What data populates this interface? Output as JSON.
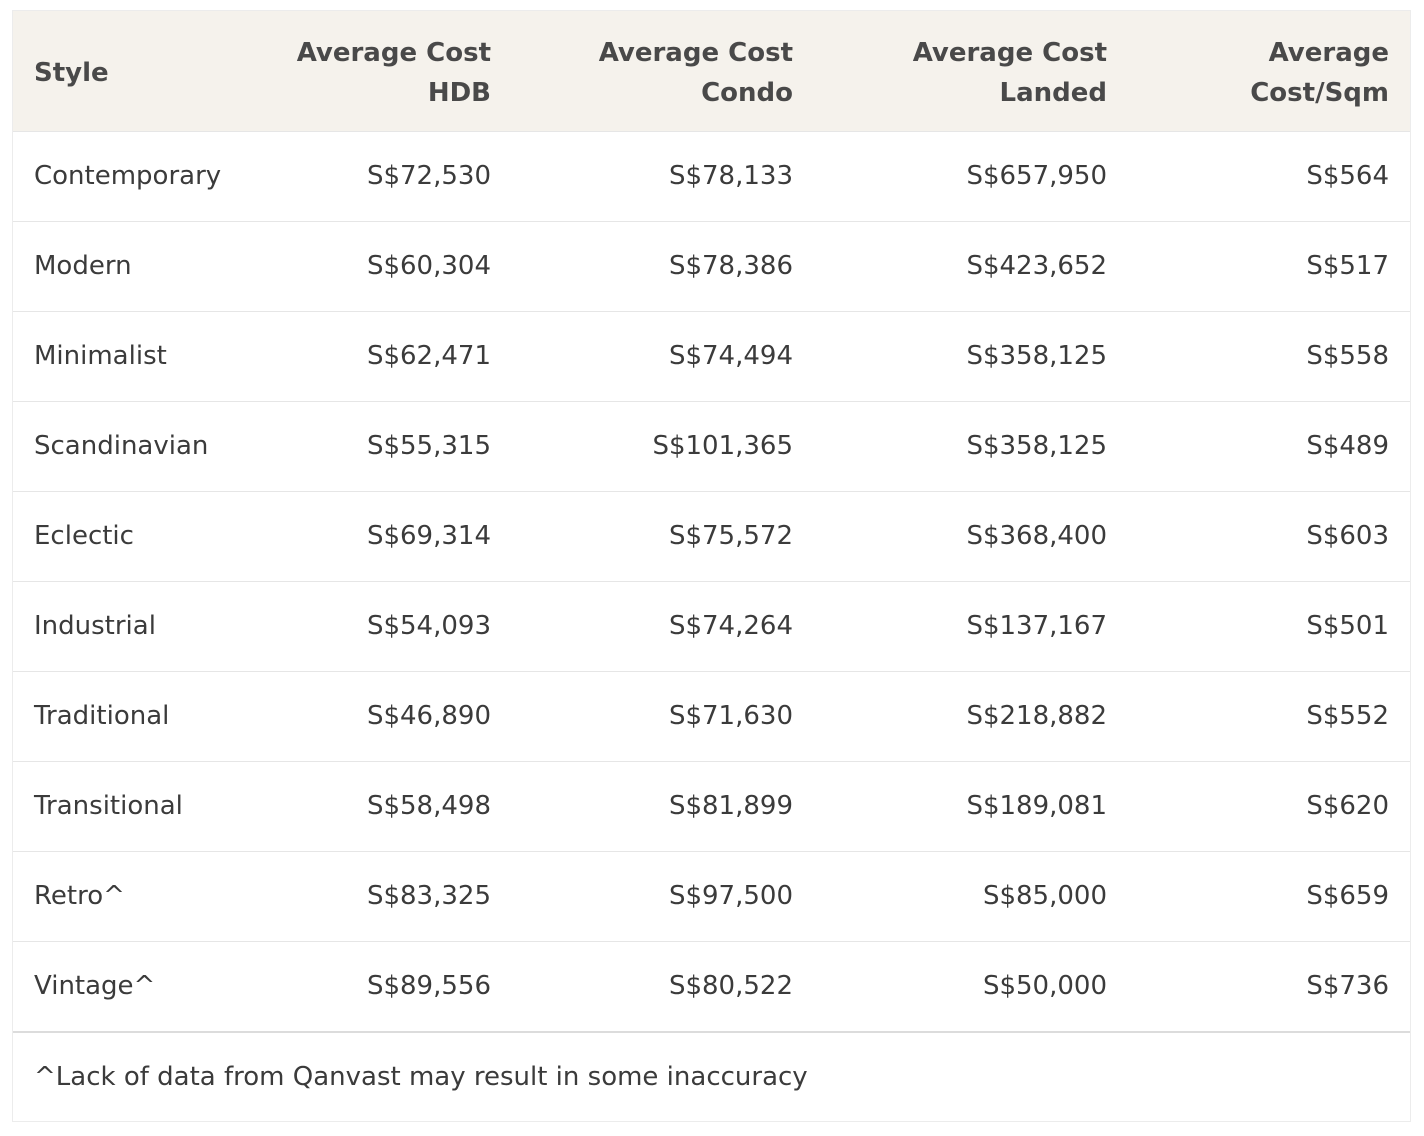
{
  "header": {
    "style": "Style",
    "hdb_line1": "Average Cost",
    "hdb_line2": "HDB",
    "condo_line1": "Average Cost",
    "condo_line2": "Condo",
    "landed_line1": "Average Cost",
    "landed_line2": "Landed",
    "sqm_line1": "Average",
    "sqm_line2": "Cost/Sqm"
  },
  "rows": [
    {
      "style": "Contemporary",
      "hdb": "S$72,530",
      "condo": "S$78,133",
      "landed": "S$657,950",
      "sqm": "S$564"
    },
    {
      "style": "Modern",
      "hdb": "S$60,304",
      "condo": "S$78,386",
      "landed": "S$423,652",
      "sqm": "S$517"
    },
    {
      "style": "Minimalist",
      "hdb": "S$62,471",
      "condo": "S$74,494",
      "landed": "S$358,125",
      "sqm": "S$558"
    },
    {
      "style": "Scandinavian",
      "hdb": "S$55,315",
      "condo": "S$101,365",
      "landed": "S$358,125",
      "sqm": "S$489"
    },
    {
      "style": "Eclectic",
      "hdb": "S$69,314",
      "condo": "S$75,572",
      "landed": "S$368,400",
      "sqm": "S$603"
    },
    {
      "style": "Industrial",
      "hdb": "S$54,093",
      "condo": "S$74,264",
      "landed": "S$137,167",
      "sqm": "S$501"
    },
    {
      "style": "Traditional",
      "hdb": "S$46,890",
      "condo": "S$71,630",
      "landed": "S$218,882",
      "sqm": "S$552"
    },
    {
      "style": "Transitional",
      "hdb": "S$58,498",
      "condo": "S$81,899",
      "landed": "S$189,081",
      "sqm": "S$620"
    },
    {
      "style": "Retro^",
      "hdb": "S$83,325",
      "condo": "S$97,500",
      "landed": "S$85,000",
      "sqm": "S$659"
    },
    {
      "style": "Vintage^",
      "hdb": "S$89,556",
      "condo": "S$80,522",
      "landed": "S$50,000",
      "sqm": "S$736"
    }
  ],
  "footnote": "^Lack of data from Qanvast may result in some inaccuracy",
  "colors": {
    "header_bg": "#f5f2ec",
    "text": "#3b3b3b",
    "border": "#e6e6e6"
  }
}
